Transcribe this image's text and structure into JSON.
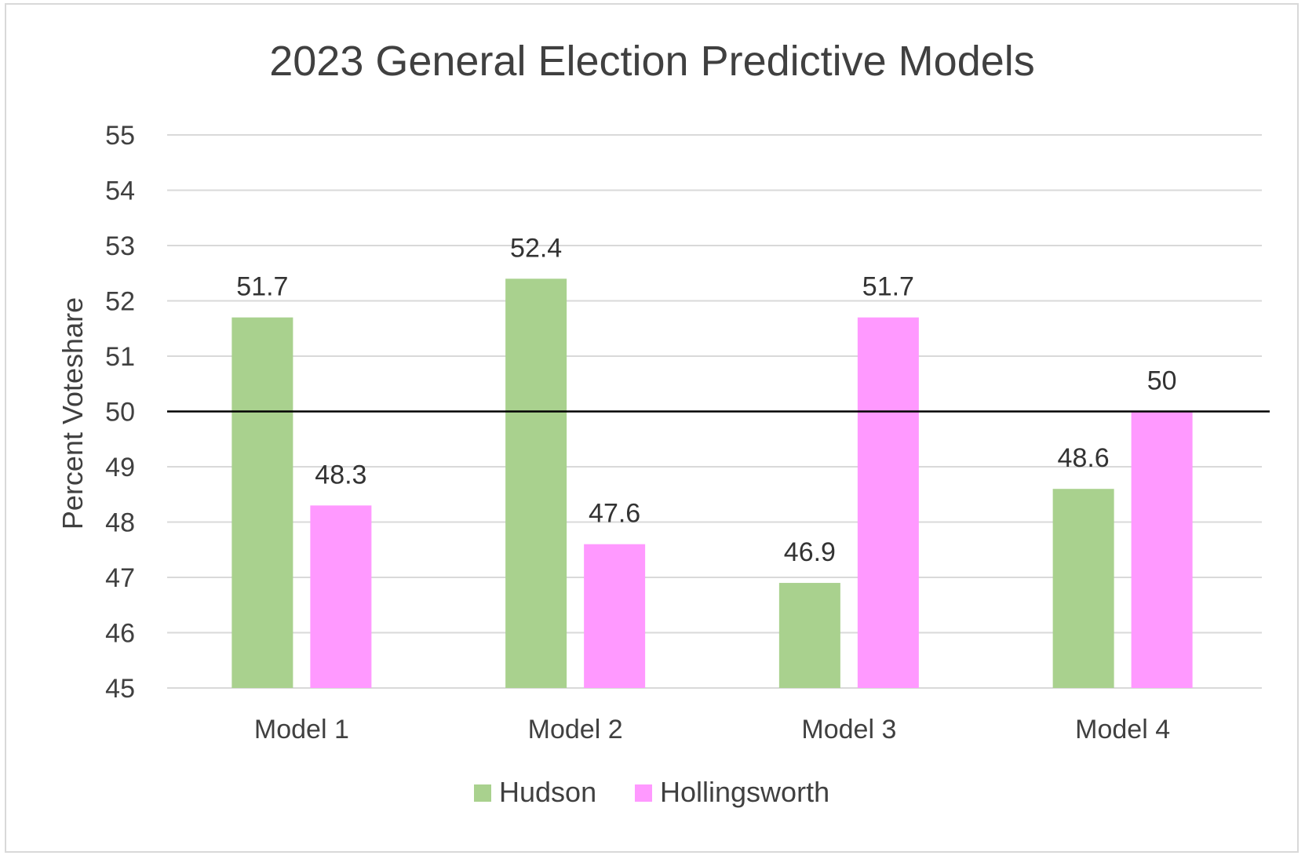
{
  "chart_data": {
    "type": "bar",
    "title": "2023 General Election Predictive Models",
    "xlabel": "",
    "ylabel": "Percent Voteshare",
    "ylim": [
      45,
      55
    ],
    "yticks": [
      "45",
      "46",
      "47",
      "48",
      "49",
      "50",
      "51",
      "52",
      "53",
      "54",
      "55"
    ],
    "grid": true,
    "reference_line": 50,
    "legend_position": "bottom",
    "categories": [
      "Model 1",
      "Model 2",
      "Model 3",
      "Model 4"
    ],
    "series": [
      {
        "name": "Hudson",
        "color": "#a9d18e",
        "values": [
          51.7,
          52.4,
          46.9,
          48.6
        ],
        "labels": [
          "51.7",
          "52.4",
          "46.9",
          "48.6"
        ]
      },
      {
        "name": "Hollingsworth",
        "color": "#ff99ff",
        "values": [
          48.3,
          47.6,
          51.7,
          50
        ],
        "labels": [
          "48.3",
          "47.6",
          "51.7",
          "50"
        ]
      }
    ]
  }
}
